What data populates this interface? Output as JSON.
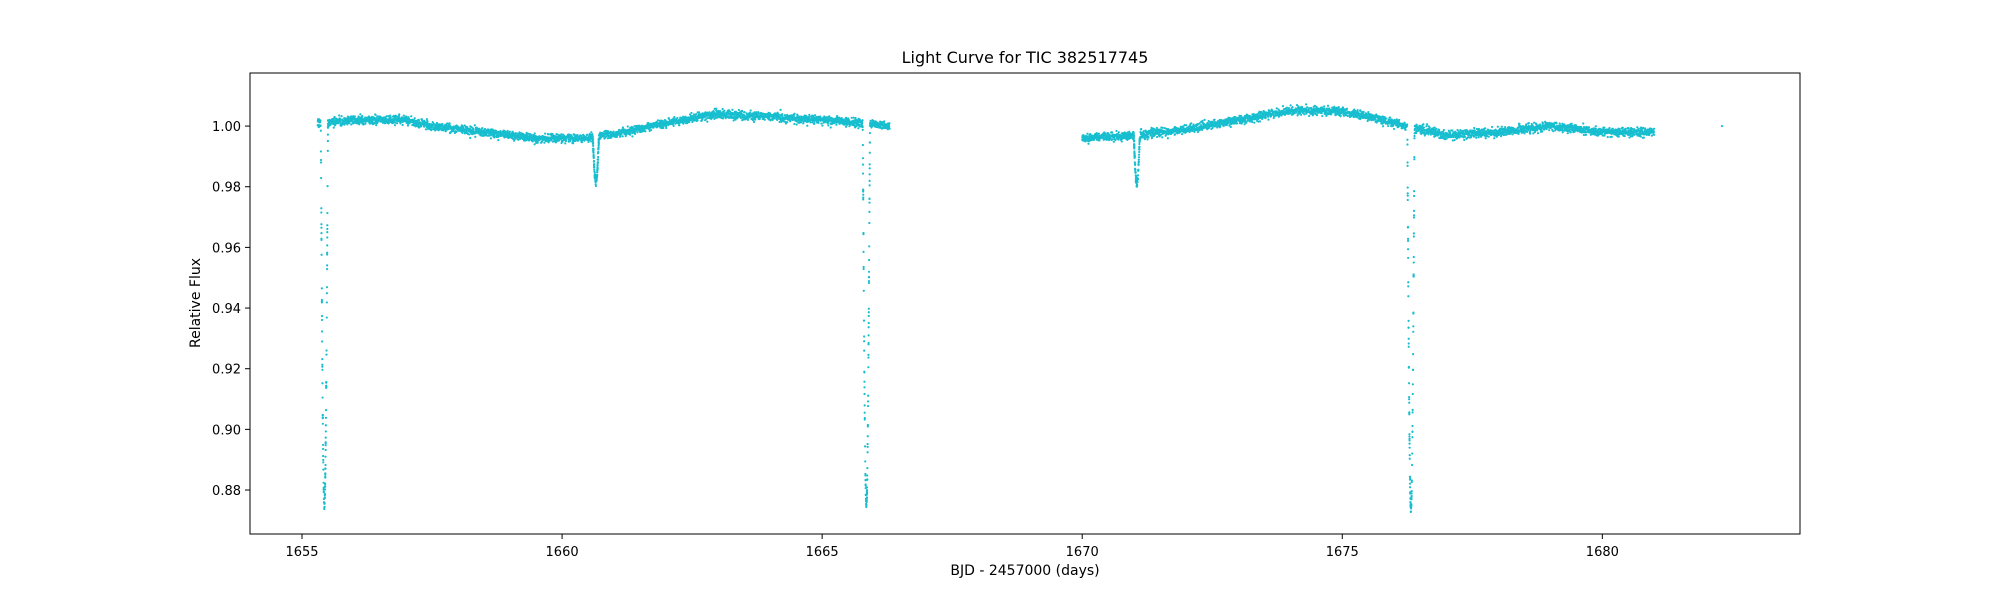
{
  "chart_data": {
    "type": "scatter",
    "title": "Light Curve for TIC 382517745",
    "xlabel": "BJD - 2457000 (days)",
    "ylabel": "Relative Flux",
    "xlim": [
      1654.0,
      1683.8
    ],
    "ylim": [
      0.8655,
      1.0175
    ],
    "xticks": [
      1655,
      1660,
      1665,
      1670,
      1675,
      1680
    ],
    "yticks": [
      0.88,
      0.9,
      0.92,
      0.94,
      0.96,
      0.98,
      1.0
    ],
    "grid": false,
    "color": "#17becf",
    "series": [
      {
        "segments": [
          [
            1655.3,
            1666.3
          ],
          [
            1670.0,
            1681.0
          ]
        ],
        "baseline": [
          [
            1655.3,
            1.001
          ],
          [
            1656.0,
            1.002
          ],
          [
            1657.0,
            1.002
          ],
          [
            1657.5,
            1.0
          ],
          [
            1658.5,
            0.998
          ],
          [
            1659.5,
            0.996
          ],
          [
            1660.5,
            0.996
          ],
          [
            1661.2,
            0.998
          ],
          [
            1662.0,
            1.001
          ],
          [
            1663.0,
            1.004
          ],
          [
            1664.0,
            1.003
          ],
          [
            1665.0,
            1.002
          ],
          [
            1666.3,
            1.0
          ],
          [
            1670.0,
            0.996
          ],
          [
            1671.0,
            0.997
          ],
          [
            1672.0,
            0.999
          ],
          [
            1673.0,
            1.002
          ],
          [
            1674.0,
            1.005
          ],
          [
            1675.0,
            1.005
          ],
          [
            1676.0,
            1.001
          ],
          [
            1677.0,
            0.997
          ],
          [
            1678.0,
            0.998
          ],
          [
            1679.0,
            1.0
          ],
          [
            1680.0,
            0.998
          ],
          [
            1681.0,
            0.998
          ]
        ],
        "eclipses": [
          {
            "center": 1655.43,
            "depth": 0.126,
            "halfwidth": 0.07
          },
          {
            "center": 1660.65,
            "depth": 0.015,
            "halfwidth": 0.06
          },
          {
            "center": 1665.85,
            "depth": 0.125,
            "halfwidth": 0.07
          },
          {
            "center": 1671.05,
            "depth": 0.016,
            "halfwidth": 0.06
          },
          {
            "center": 1676.32,
            "depth": 0.126,
            "halfwidth": 0.07
          }
        ],
        "isolated_points": [
          [
            1682.3,
            1.0
          ]
        ]
      }
    ]
  }
}
